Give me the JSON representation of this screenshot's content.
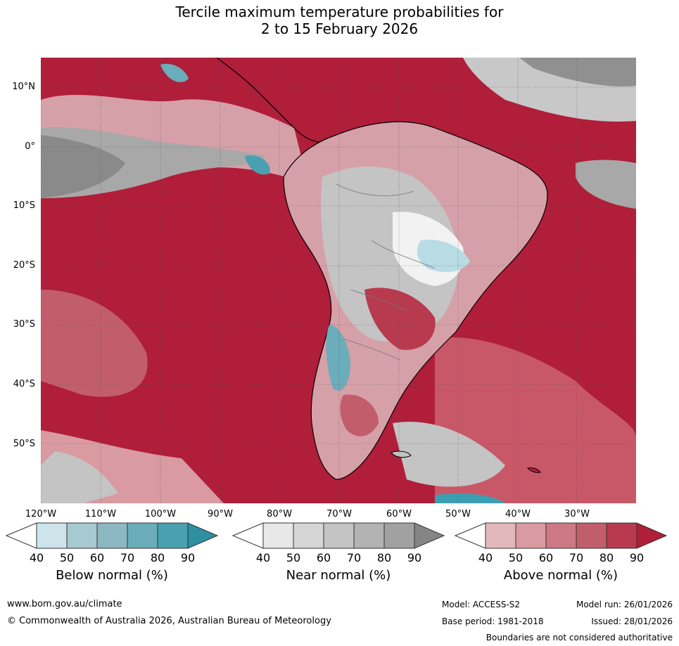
{
  "title_line1": "Tercile maximum temperature probabilities for",
  "title_line2": "2 to 15 February 2026",
  "lat_labels": [
    "10°N",
    "0°",
    "10°S",
    "20°S",
    "30°S",
    "40°S",
    "50°S"
  ],
  "lon_labels": [
    "120°W",
    "110°W",
    "100°W",
    "90°W",
    "80°W",
    "70°W",
    "60°W",
    "50°W",
    "40°W",
    "30°W"
  ],
  "colorbars": [
    {
      "title": "Below normal (%)",
      "ticks": [
        "40",
        "50",
        "60",
        "70",
        "80",
        "90"
      ],
      "colors": [
        "#cde4ea",
        "#a7c9d0",
        "#8bb8c2",
        "#6badba",
        "#4a9fb0",
        "#2e8fa3"
      ]
    },
    {
      "title": "Near normal (%)",
      "ticks": [
        "40",
        "50",
        "60",
        "70",
        "80",
        "90"
      ],
      "colors": [
        "#e8e8e8",
        "#d6d6d6",
        "#c4c4c4",
        "#b3b3b3",
        "#a1a1a1",
        "#858585"
      ]
    },
    {
      "title": "Above normal (%)",
      "ticks": [
        "40",
        "50",
        "60",
        "70",
        "80",
        "90"
      ],
      "colors": [
        "#e3b8bd",
        "#d99aa2",
        "#cd7a86",
        "#c25e6c",
        "#b83a4f",
        "#b01e3a"
      ]
    }
  ],
  "footer": {
    "url": "www.bom.gov.au/climate",
    "copyright": "© Commonwealth of Australia 2026, Australian Bureau of Meteorology",
    "model": "Model: ACCESS-S2",
    "model_run": "Model run: 26/01/2026",
    "base_period": "Base period: 1981-2018",
    "issued": "Issued: 28/01/2026",
    "disclaimer": "Boundaries are not considered authoritative"
  },
  "colors": {
    "above_high": "#b01e3a",
    "above_mid": "#c85868",
    "above_low": "#dca0a8",
    "near_dark": "#8a8a8a",
    "near_mid": "#b4b4b4",
    "near_light": "#dcdcdc",
    "below_light": "#b8dce4",
    "below_dark": "#3b9fb2"
  }
}
